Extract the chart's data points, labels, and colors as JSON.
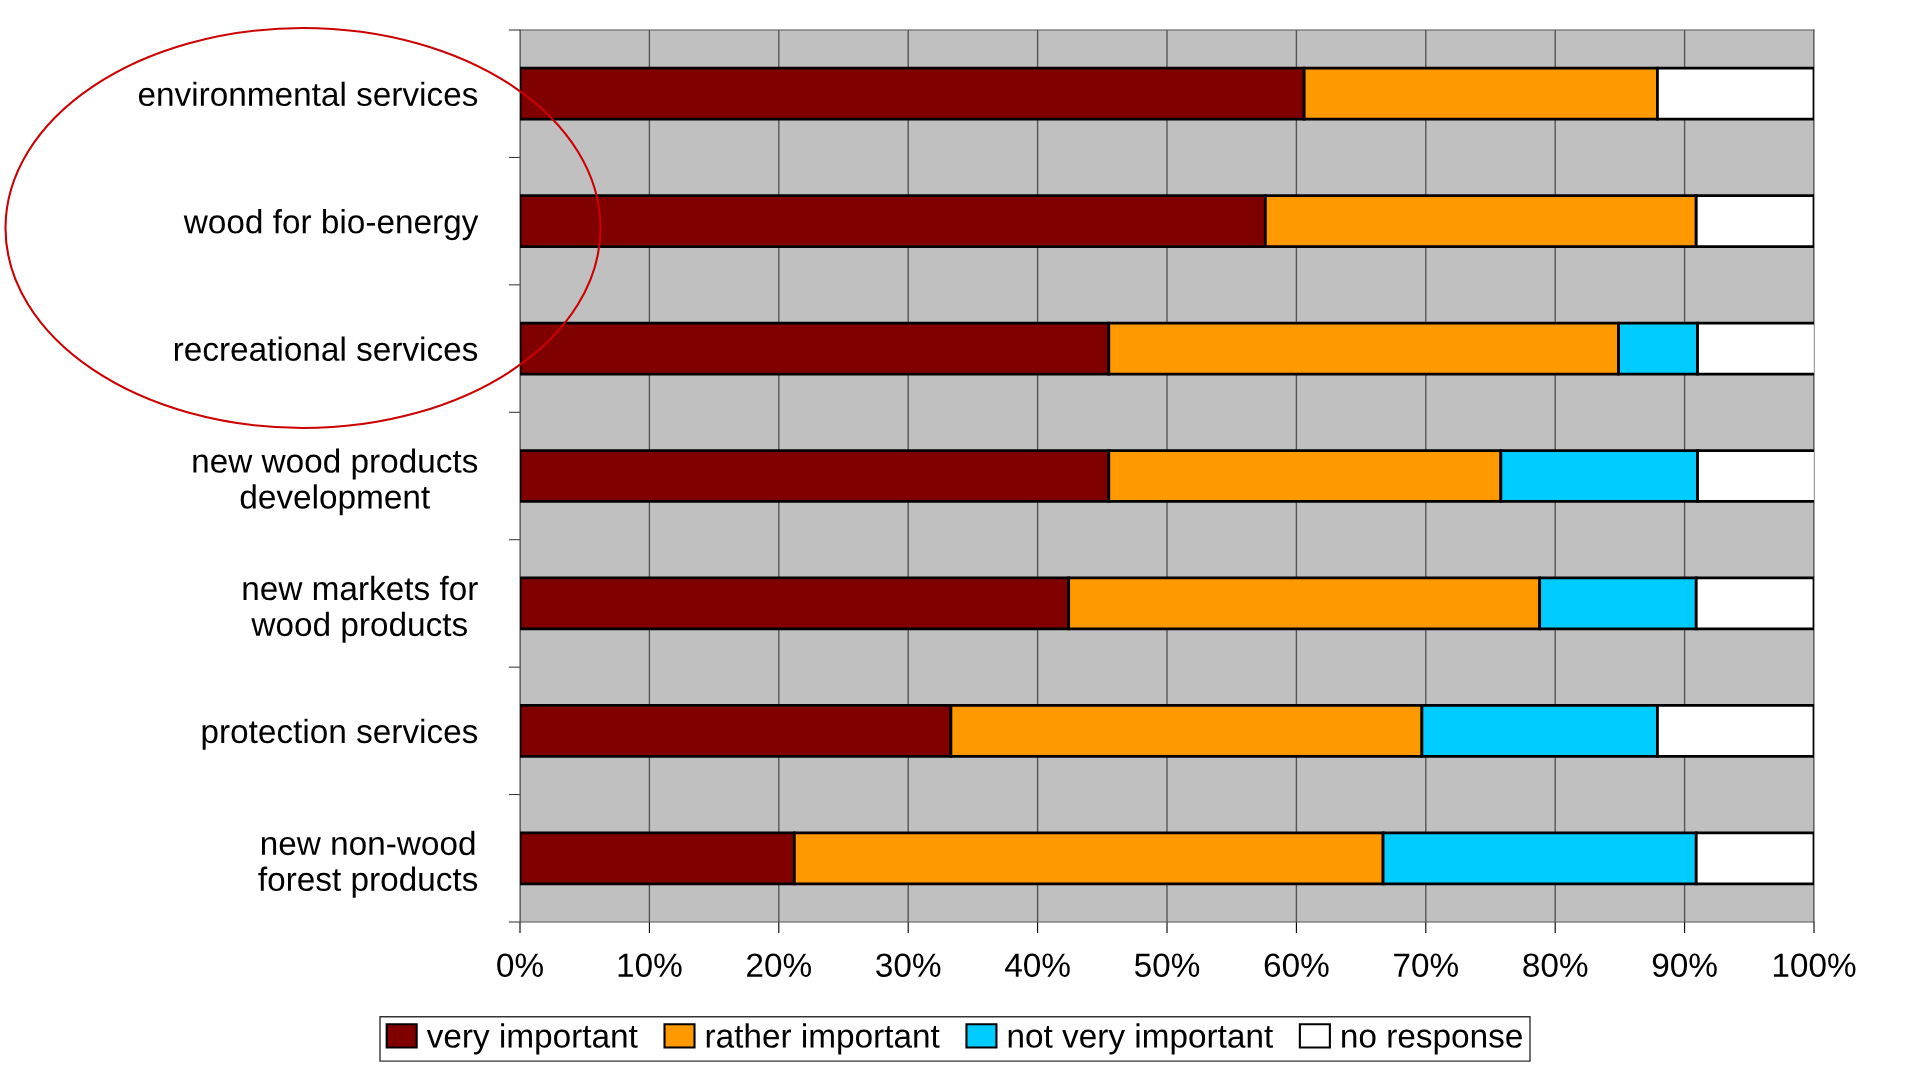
{
  "chart_data": {
    "type": "bar",
    "orientation": "horizontal",
    "stacked": true,
    "categories": [
      "environmental services",
      "wood for bio-energy",
      "recreational services",
      "new wood products development",
      "new markets for wood products",
      "protection services",
      "new non-wood forest products"
    ],
    "series": [
      {
        "name": "very important",
        "color": "#800000",
        "values": [
          60.6,
          57.6,
          45.5,
          45.5,
          42.4,
          33.3,
          21.2
        ]
      },
      {
        "name": "rather important",
        "color": "#ff9900",
        "values": [
          27.3,
          33.3,
          39.4,
          30.3,
          36.4,
          36.4,
          45.5
        ]
      },
      {
        "name": "not very important",
        "color": "#00ccff",
        "values": [
          0,
          0,
          6.1,
          15.2,
          12.1,
          18.2,
          24.2
        ]
      },
      {
        "name": "no response",
        "color": "#ffffff",
        "values": [
          12.1,
          9.1,
          9.1,
          9.1,
          9.1,
          12.1,
          9.1
        ]
      }
    ],
    "xlim": [
      0,
      100
    ],
    "xticks": [
      {
        "value": 0,
        "label": "0%"
      },
      {
        "value": 10,
        "label": "10%"
      },
      {
        "value": 20,
        "label": "20%"
      },
      {
        "value": 30,
        "label": "30%"
      },
      {
        "value": 40,
        "label": "40%"
      },
      {
        "value": 50,
        "label": "50%"
      },
      {
        "value": 60,
        "label": "60%"
      },
      {
        "value": 70,
        "label": "70%"
      },
      {
        "value": 80,
        "label": "80%"
      },
      {
        "value": 90,
        "label": "90%"
      },
      {
        "value": 100,
        "label": "100%"
      }
    ],
    "grid": "x",
    "legend": "bottom"
  }
}
